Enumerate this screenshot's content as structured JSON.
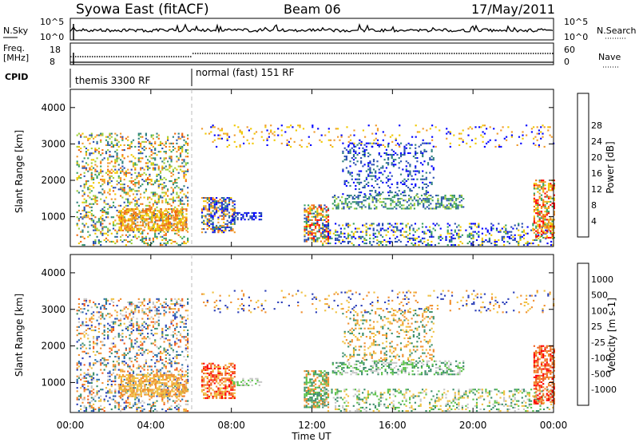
{
  "header": {
    "title": "Syowa East (fitACF)",
    "beam": "Beam 06",
    "date": "17/May/2011"
  },
  "top_panel": {
    "left_label": "N.Sky",
    "right_label": "N.Search",
    "left_ticks": [
      "10^5",
      "10^0"
    ],
    "right_ticks": [
      "10^5",
      "10^0"
    ]
  },
  "freq_panel": {
    "left_label_line1": "Freq.",
    "left_label_line2": "[MHz]",
    "right_label": "Nave",
    "left_ticks": [
      "18",
      "8"
    ],
    "right_ticks": [
      "60",
      "0"
    ]
  },
  "cpid": {
    "label": "CPID",
    "modes": [
      {
        "name": "themis 3300 RF",
        "start_hours": 0,
        "end_hours": 6
      },
      {
        "name": "normal (fast) 151 RF",
        "start_hours": 6,
        "end_hours": 24
      }
    ]
  },
  "x_axis": {
    "label": "Time UT",
    "ticks": [
      "00:00",
      "04:00",
      "08:00",
      "12:00",
      "16:00",
      "20:00",
      "00:00"
    ]
  },
  "power_panel": {
    "ylabel": "Slant Range [km]",
    "yticks": [
      "1000",
      "2000",
      "3000",
      "4000"
    ],
    "colorbar_label": "Power [dB]",
    "colorbar_ticks": [
      "4",
      "8",
      "12",
      "16",
      "20",
      "24",
      "28"
    ],
    "colors": [
      "#0000ff",
      "#2a4fb0",
      "#2f7f7f",
      "#3aa060",
      "#9ecf3a",
      "#f0c800",
      "#f09a2a",
      "#f06a10",
      "#ff0000"
    ]
  },
  "velocity_panel": {
    "ylabel": "Slant Range [km]",
    "yticks": [
      "1000",
      "2000",
      "3000",
      "4000"
    ],
    "colorbar_label": "Velocity [m s-1]",
    "colorbar_ticks": [
      "1000",
      "500",
      "100",
      "25",
      "-25",
      "-100",
      "-500",
      "-1000"
    ],
    "colors": [
      "#2b3fb8",
      "#2a6fa8",
      "#3d8f6a",
      "#5cc24a",
      "#c8c8c8",
      "#f0c040",
      "#f09030",
      "#f06020",
      "#ff0000"
    ]
  },
  "chart_data": {
    "type": "heatmap",
    "x_range_hours": [
      0,
      24
    ],
    "y_range_km": [
      180,
      4500
    ],
    "power_regions": [
      {
        "t0": 0.3,
        "t1": 5.8,
        "r0": 200,
        "r1": 3300,
        "density": 0.28,
        "levels": [
          1,
          2,
          3,
          4,
          5,
          6,
          7
        ]
      },
      {
        "t0": 2.4,
        "t1": 5.8,
        "r0": 600,
        "r1": 1200,
        "density": 0.6,
        "levels": [
          5,
          6,
          7
        ]
      },
      {
        "t0": 6.5,
        "t1": 8.2,
        "r0": 550,
        "r1": 1500,
        "density": 0.55,
        "levels": [
          0,
          1,
          2,
          5,
          6,
          7
        ]
      },
      {
        "t0": 8.0,
        "t1": 9.5,
        "r0": 900,
        "r1": 1100,
        "density": 0.5,
        "levels": [
          0,
          1
        ]
      },
      {
        "t0": 11.6,
        "t1": 12.8,
        "r0": 300,
        "r1": 1300,
        "density": 0.6,
        "levels": [
          1,
          3,
          5,
          7,
          8
        ]
      },
      {
        "t0": 13.0,
        "t1": 19.5,
        "r0": 1200,
        "r1": 1600,
        "density": 0.45,
        "levels": [
          1,
          2,
          3,
          4
        ]
      },
      {
        "t0": 13.5,
        "t1": 18.0,
        "r0": 1600,
        "r1": 3000,
        "density": 0.22,
        "levels": [
          0,
          1,
          2
        ]
      },
      {
        "t0": 12.5,
        "t1": 24.0,
        "r0": 200,
        "r1": 800,
        "density": 0.28,
        "levels": [
          0,
          1,
          3,
          5
        ]
      },
      {
        "t0": 23.0,
        "t1": 24.0,
        "r0": 400,
        "r1": 2000,
        "density": 0.55,
        "levels": [
          3,
          5,
          6,
          7,
          8
        ]
      },
      {
        "t0": 6.5,
        "t1": 24.0,
        "r0": 2900,
        "r1": 3500,
        "density": 0.1,
        "levels": [
          0,
          5,
          6
        ]
      }
    ],
    "velocity_regions": [
      {
        "t0": 0.3,
        "t1": 5.8,
        "r0": 200,
        "r1": 3300,
        "density": 0.28,
        "levels": [
          0,
          1,
          2,
          4,
          5,
          6,
          7
        ]
      },
      {
        "t0": 2.4,
        "t1": 5.8,
        "r0": 600,
        "r1": 1200,
        "density": 0.6,
        "levels": [
          5,
          6
        ]
      },
      {
        "t0": 6.5,
        "t1": 8.2,
        "r0": 550,
        "r1": 1500,
        "density": 0.6,
        "levels": [
          5,
          6,
          7,
          8
        ]
      },
      {
        "t0": 8.0,
        "t1": 9.5,
        "r0": 900,
        "r1": 1100,
        "density": 0.45,
        "levels": [
          3,
          4
        ]
      },
      {
        "t0": 11.6,
        "t1": 12.8,
        "r0": 300,
        "r1": 1300,
        "density": 0.6,
        "levels": [
          2,
          3,
          6
        ]
      },
      {
        "t0": 13.0,
        "t1": 19.5,
        "r0": 1200,
        "r1": 1600,
        "density": 0.45,
        "levels": [
          2,
          3,
          4
        ]
      },
      {
        "t0": 13.5,
        "t1": 18.0,
        "r0": 1600,
        "r1": 3000,
        "density": 0.22,
        "levels": [
          2,
          5,
          6
        ]
      },
      {
        "t0": 12.5,
        "t1": 24.0,
        "r0": 200,
        "r1": 800,
        "density": 0.28,
        "levels": [
          2,
          3,
          4,
          5
        ]
      },
      {
        "t0": 23.0,
        "t1": 24.0,
        "r0": 400,
        "r1": 2000,
        "density": 0.55,
        "levels": [
          6,
          7,
          8
        ]
      },
      {
        "t0": 6.5,
        "t1": 24.0,
        "r0": 2900,
        "r1": 3500,
        "density": 0.1,
        "levels": [
          0,
          5,
          6
        ]
      }
    ]
  }
}
